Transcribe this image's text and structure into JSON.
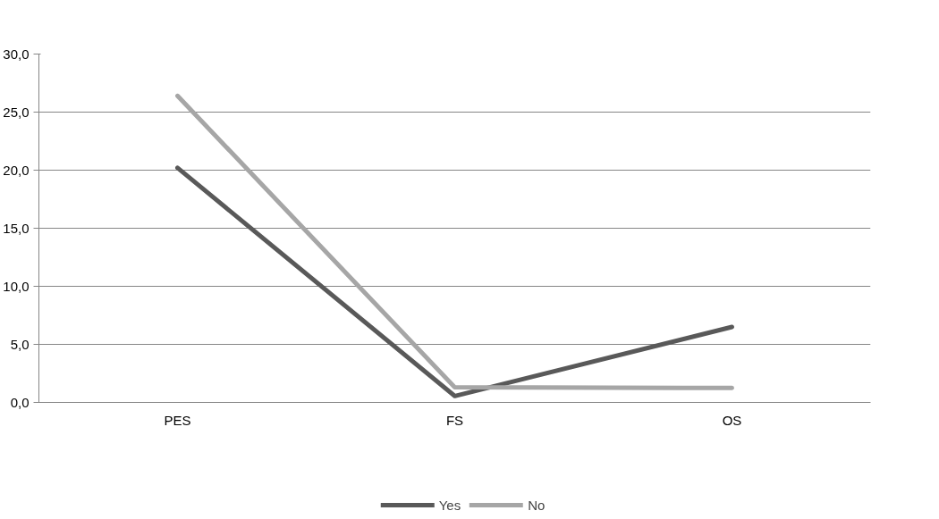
{
  "chart_data": {
    "type": "line",
    "categories": [
      "PES",
      "FS",
      "OS"
    ],
    "series": [
      {
        "name": "Yes",
        "color": "#595959",
        "values": [
          20.2,
          0.55,
          6.5
        ]
      },
      {
        "name": "No",
        "color": "#a6a6a6",
        "values": [
          26.4,
          1.3,
          1.25
        ]
      }
    ],
    "ylim": [
      0,
      30
    ],
    "yticks": [
      {
        "value": 0,
        "label": "0,0"
      },
      {
        "value": 5,
        "label": "5,0"
      },
      {
        "value": 10,
        "label": "10,0"
      },
      {
        "value": 15,
        "label": "15,0"
      },
      {
        "value": 20,
        "label": "20,0"
      },
      {
        "value": 25,
        "label": "25,0"
      },
      {
        "value": 30,
        "label": "30,0"
      }
    ],
    "grid": "y",
    "legend": "bottom",
    "marker": "none",
    "line_style": "solid"
  }
}
